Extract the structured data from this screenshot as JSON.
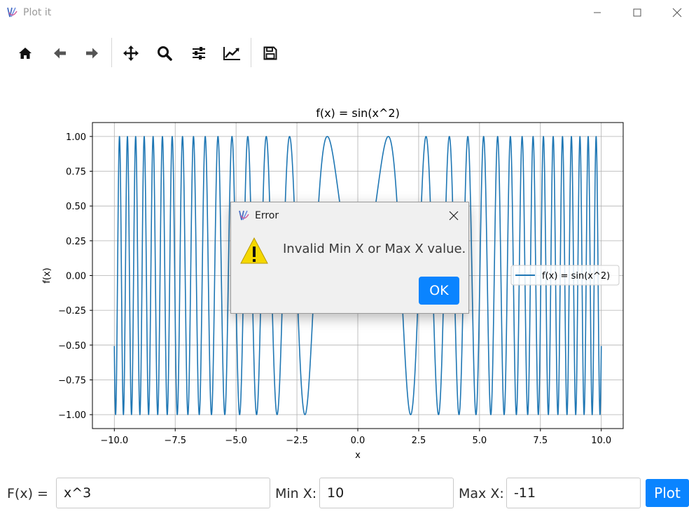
{
  "window": {
    "title": "Plot it"
  },
  "toolbar": {
    "tools": [
      "home",
      "back",
      "forward",
      "pan",
      "zoom",
      "subplots",
      "customize",
      "save"
    ]
  },
  "chart_data": {
    "type": "line",
    "function": "sin(x^2)",
    "title": "f(x) = sin(x^2)",
    "xlabel": "x",
    "ylabel": "f(x)",
    "xlim": [
      -10.9,
      10.9
    ],
    "ylim": [
      -1.1,
      1.1
    ],
    "x_ticks": [
      -10.0,
      -7.5,
      -5.0,
      -2.5,
      0.0,
      2.5,
      5.0,
      7.5,
      10.0
    ],
    "x_tick_labels": [
      "−10.0",
      "−7.5",
      "−5.0",
      "−2.5",
      "0.0",
      "2.5",
      "5.0",
      "7.5",
      "10.0"
    ],
    "y_ticks": [
      1.0,
      0.75,
      0.5,
      0.25,
      0.0,
      -0.25,
      -0.5,
      -0.75,
      -1.0
    ],
    "y_tick_labels": [
      "1.00",
      "0.75",
      "0.50",
      "0.25",
      "0.00",
      "−0.25",
      "−0.50",
      "−0.75",
      "−1.00"
    ],
    "x_range": [
      -10,
      10
    ],
    "grid": true,
    "legend_position": "right",
    "series": [
      {
        "name": "f(x) = sin(x^2)",
        "color": "#1f77b4"
      }
    ]
  },
  "dialog": {
    "title": "Error",
    "message": "Invalid Min X or Max X value.",
    "ok_label": "OK"
  },
  "controls": {
    "fx_label": "F(x) =",
    "fx_value": "x^3",
    "minx_label": "Min X:",
    "minx_value": "10",
    "maxx_label": "Max X:",
    "maxx_value": "-11",
    "plot_label": "Plot"
  },
  "colors": {
    "accent": "#0a84ff",
    "line": "#1f77b4",
    "grid": "#b0b0b0"
  }
}
